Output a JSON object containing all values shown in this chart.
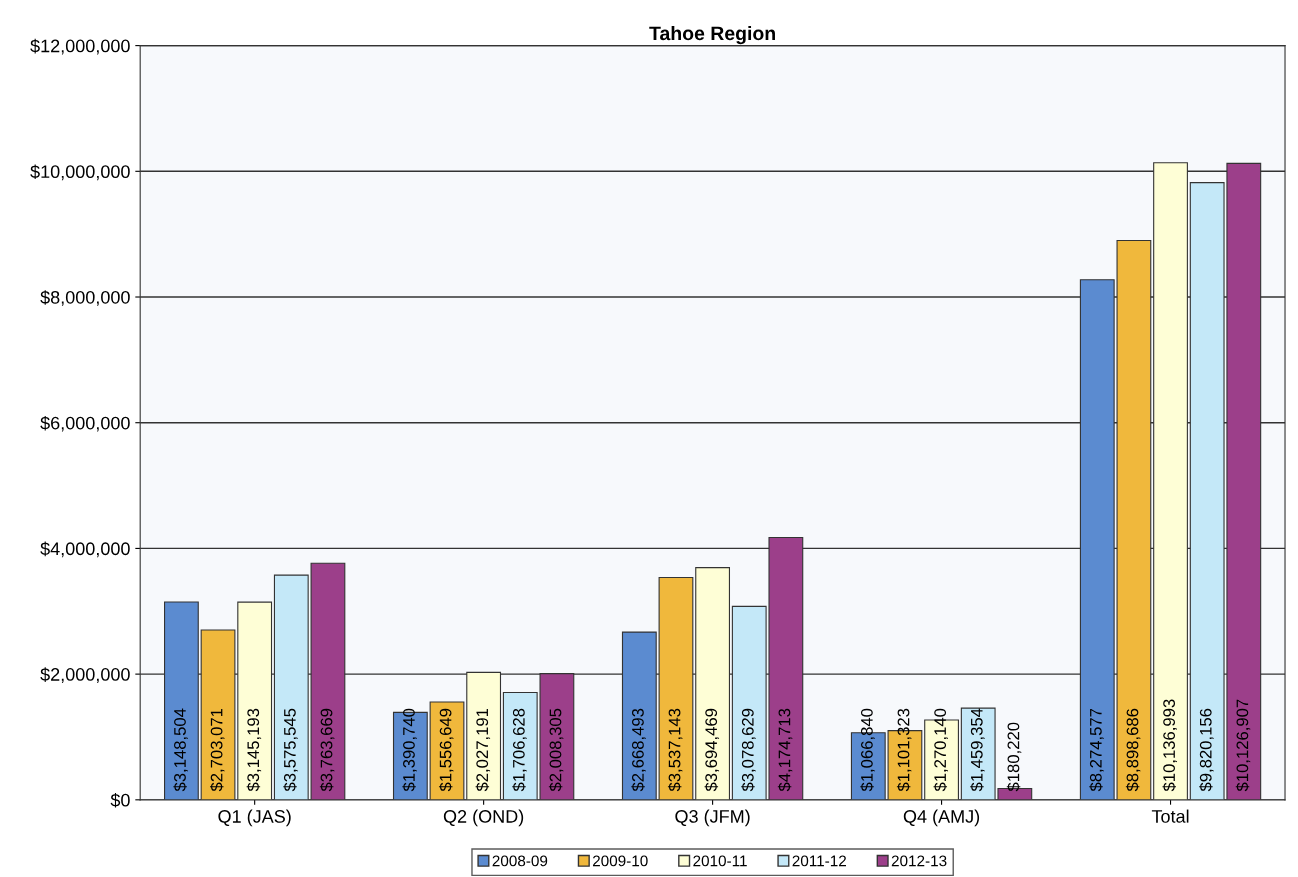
{
  "chart_data": {
    "type": "bar",
    "title": "Tahoe Region",
    "categories": [
      "Q1 (JAS)",
      "Q2 (OND)",
      "Q3 (JFM)",
      "Q4 (AMJ)",
      "Total"
    ],
    "series": [
      {
        "name": "2008-09",
        "color": "#5b8bd0",
        "values": [
          3148504,
          1390740,
          2668493,
          1066840,
          8274577
        ],
        "value_labels": [
          "$3,148,504",
          "$1,390,740",
          "$2,668,493",
          "$1,066,840",
          "$8,274,577"
        ]
      },
      {
        "name": "2009-10",
        "color": "#f0b83c",
        "values": [
          2703071,
          1556649,
          3537143,
          1101323,
          8898686
        ],
        "value_labels": [
          "$2,703,071",
          "$1,556,649",
          "$3,537,143",
          "$1,101,323",
          "$8,898,686"
        ]
      },
      {
        "name": "2010-11",
        "color": "#fefed6",
        "values": [
          3145193,
          2027191,
          3694469,
          1270140,
          10136993
        ],
        "value_labels": [
          "$3,145,193",
          "$2,027,191",
          "$3,694,469",
          "$1,270,140",
          "$10,136,993"
        ]
      },
      {
        "name": "2011-12",
        "color": "#c4e8f8",
        "values": [
          3575545,
          1706628,
          3078629,
          1459354,
          9820156
        ],
        "value_labels": [
          "$3,575,545",
          "$1,706,628",
          "$3,078,629",
          "$1,459,354",
          "$9,820,156"
        ]
      },
      {
        "name": "2012-13",
        "color": "#9c3f8a",
        "values": [
          3763669,
          2008305,
          4174713,
          180220,
          10126907
        ],
        "value_labels": [
          "$3,763,669",
          "$2,008,305",
          "$4,174,713",
          "$180,220",
          "$10,126,907"
        ]
      }
    ],
    "ylim": [
      0,
      12000000
    ],
    "yticks": [
      {
        "value": 0,
        "label": "$0"
      },
      {
        "value": 2000000,
        "label": "$2,000,000"
      },
      {
        "value": 4000000,
        "label": "$4,000,000"
      },
      {
        "value": 6000000,
        "label": "$6,000,000"
      },
      {
        "value": 8000000,
        "label": "$8,000,000"
      },
      {
        "value": 10000000,
        "label": "$10,000,000"
      },
      {
        "value": 12000000,
        "label": "$12,000,000"
      }
    ],
    "grid": "y",
    "legend": "bottom"
  }
}
